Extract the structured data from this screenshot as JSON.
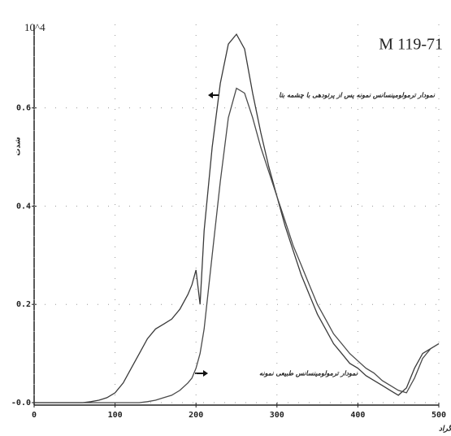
{
  "chart_data": {
    "type": "line",
    "title": "M 119-71",
    "scale_label": "10^4",
    "y_label": "شدت",
    "x_label": "دما بر حسب درجه سانتی گراد",
    "annotations": [
      "نمودار ترمولومینسانس نمونه پس از پرتودهی با چشمه بتا",
      "نمودار ترمولومینسانس طبیعی نمونه"
    ],
    "x": [
      0,
      10,
      20,
      30,
      40,
      50,
      60,
      70,
      80,
      90,
      100,
      110,
      120,
      130,
      140,
      150,
      160,
      170,
      180,
      190,
      195,
      200,
      205,
      210,
      220,
      230,
      240,
      250,
      260,
      270,
      280,
      290,
      300,
      310,
      320,
      330,
      340,
      350,
      360,
      370,
      380,
      390,
      400,
      410,
      420,
      430,
      440,
      450,
      460,
      470,
      480,
      490,
      500
    ],
    "series": [
      {
        "color": "#3a3a3a",
        "values": [
          0,
          0,
          0,
          0,
          0,
          0,
          0,
          0.002,
          0.005,
          0.01,
          0.02,
          0.04,
          0.07,
          0.1,
          0.13,
          0.15,
          0.16,
          0.17,
          0.19,
          0.22,
          0.24,
          0.27,
          0.2,
          0.35,
          0.52,
          0.65,
          0.73,
          0.75,
          0.72,
          0.63,
          0.55,
          0.48,
          0.42,
          0.36,
          0.31,
          0.26,
          0.22,
          0.18,
          0.15,
          0.12,
          0.1,
          0.08,
          0.07,
          0.055,
          0.045,
          0.035,
          0.025,
          0.015,
          0.03,
          0.07,
          0.1,
          0.11,
          0.12
        ]
      },
      {
        "color": "#4a4a4a",
        "values": [
          0,
          0,
          0,
          0,
          0,
          0,
          0,
          0,
          0,
          0,
          0,
          0,
          0,
          0,
          0.002,
          0.005,
          0.01,
          0.015,
          0.025,
          0.04,
          0.05,
          0.07,
          0.1,
          0.15,
          0.3,
          0.45,
          0.58,
          0.64,
          0.63,
          0.58,
          0.52,
          0.47,
          0.42,
          0.37,
          0.32,
          0.28,
          0.24,
          0.2,
          0.17,
          0.14,
          0.12,
          0.1,
          0.085,
          0.07,
          0.06,
          0.045,
          0.035,
          0.025,
          0.02,
          0.05,
          0.09,
          0.11,
          0.12
        ]
      }
    ],
    "xlim": [
      0,
      500
    ],
    "xticks": [
      0,
      100,
      200,
      300,
      400,
      500
    ],
    "ylim": [
      -0.005,
      0.77
    ],
    "yticks": [
      {
        "value": 0,
        "label": "-0.0"
      },
      0.2,
      0.4,
      0.6
    ],
    "grid": true
  }
}
